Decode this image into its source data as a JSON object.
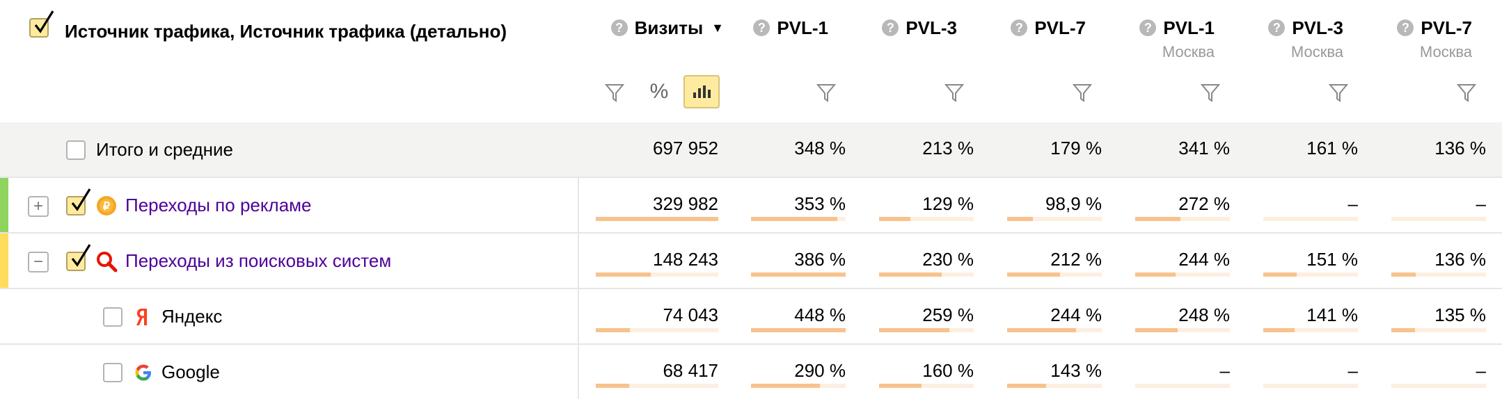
{
  "header": {
    "dimension_title": "Источник трафика, Источник трафика (детально)",
    "question_mark": "?",
    "sort_arrow": "▼",
    "percent_toggle": "%",
    "columns": [
      {
        "title": "Визиты",
        "subtitle": ""
      },
      {
        "title": "PVL-1",
        "subtitle": ""
      },
      {
        "title": "PVL-3",
        "subtitle": ""
      },
      {
        "title": "PVL-7",
        "subtitle": ""
      },
      {
        "title": "PVL-1",
        "subtitle": "Москва"
      },
      {
        "title": "PVL-3",
        "subtitle": "Москва"
      },
      {
        "title": "PVL-7",
        "subtitle": "Москва"
      }
    ]
  },
  "total": {
    "label": "Итого и средние",
    "values": [
      "697 952",
      "348 %",
      "213 %",
      "179 %",
      "341 %",
      "161 %",
      "136 %"
    ]
  },
  "rows": [
    {
      "label": "Переходы по рекламе",
      "expander": "+",
      "icon": "ad-coin-icon",
      "checked": true,
      "accent": "#8ed45e",
      "values": [
        "329 982",
        "353 %",
        "129 %",
        "98,9 %",
        "272 %",
        "–",
        "–"
      ],
      "bars": [
        1.0,
        0.91,
        0.33,
        0.27,
        0.48,
        0,
        0
      ]
    },
    {
      "label": "Переходы из поисковых систем",
      "expander": "−",
      "icon": "search-magnifier-icon",
      "checked": true,
      "accent": "#ffdc5c",
      "values": [
        "148 243",
        "386 %",
        "230 %",
        "212 %",
        "244 %",
        "151 %",
        "136 %"
      ],
      "bars": [
        0.45,
        1.0,
        0.66,
        0.56,
        0.43,
        0.35,
        0.26
      ]
    },
    {
      "label": "Яндекс",
      "icon": "yandex-logo-icon",
      "checked": false,
      "values": [
        "74 043",
        "448 %",
        "259 %",
        "244 %",
        "248 %",
        "141 %",
        "135 %"
      ],
      "bars": [
        0.28,
        1.0,
        0.74,
        0.73,
        0.45,
        0.33,
        0.25
      ]
    },
    {
      "label": "Google",
      "icon": "google-logo-icon",
      "checked": false,
      "values": [
        "68 417",
        "290 %",
        "160 %",
        "143 %",
        "–",
        "–",
        "–"
      ],
      "bars": [
        0.27,
        0.73,
        0.45,
        0.41,
        0,
        0,
        0
      ]
    }
  ],
  "colors": {
    "link": "#4d0099",
    "bar": "#f8c28d",
    "bar_track": "#fdefe0",
    "selected_toggle": "#ffeba0"
  }
}
